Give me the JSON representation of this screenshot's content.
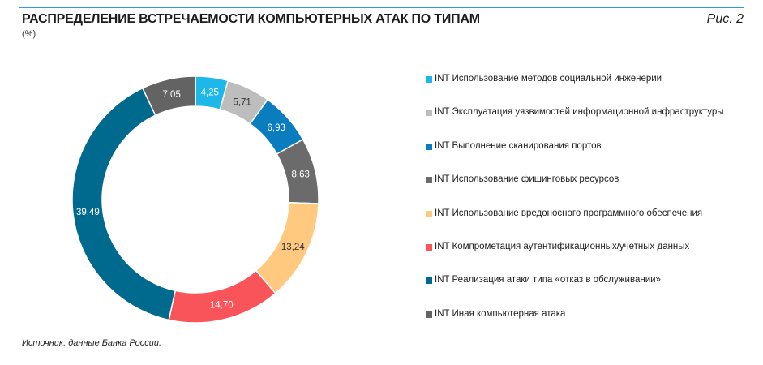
{
  "header": {
    "title": "РАСПРЕДЕЛЕНИЕ ВСТРЕЧАЕМОСТИ КОМПЬЮТЕРНЫХ АТАК ПО ТИПАМ",
    "subtitle": "(%)",
    "figure_label": "Рис. 2"
  },
  "footer": {
    "source": "Источник: данные Банка России."
  },
  "colors": {
    "rule": "#2a9fd6"
  },
  "chart_data": {
    "type": "pie",
    "variant": "donut",
    "title": "РАСПРЕДЕЛЕНИЕ ВСТРЕЧАЕМОСТИ КОМПЬЮТЕРНЫХ АТАК ПО ТИПАМ",
    "unit": "(%)",
    "start_angle": "12 o'clock",
    "direction": "clockwise",
    "legend_position": "right",
    "slices": [
      {
        "label": "INT Использование методов социальной инженерии",
        "value": 4.25,
        "value_label": "4,25",
        "color": "#1db7ea",
        "label_color": "#ffffff"
      },
      {
        "label": "INT Эксплуатация уязвимостей информационной инфраструктуры",
        "value": 5.71,
        "value_label": "5,71",
        "color": "#bdbdbd",
        "label_color": "#333333"
      },
      {
        "label": "INT Выполнение сканирования портов",
        "value": 6.93,
        "value_label": "6,93",
        "color": "#0a7dbf",
        "label_color": "#ffffff"
      },
      {
        "label": "INT Использование фишинговых ресурсов",
        "value": 8.63,
        "value_label": "8,63",
        "color": "#6b6b6b",
        "label_color": "#ffffff"
      },
      {
        "label": "INT Использование вредоносного программного обеспечения",
        "value": 13.24,
        "value_label": "13,24",
        "color": "#ffca80",
        "label_color": "#333333"
      },
      {
        "label": "INT Компрометация аутентификационных/учетных данных",
        "value": 14.7,
        "value_label": "14,70",
        "color": "#f9545a",
        "label_color": "#ffffff"
      },
      {
        "label": "INT Реализация атаки типа «отказ в обслуживании»",
        "value": 39.49,
        "value_label": "39,49",
        "color": "#006a8e",
        "label_color": "#ffffff"
      },
      {
        "label": "INT Иная компьютерная атака",
        "value": 7.05,
        "value_label": "7,05",
        "color": "#636363",
        "label_color": "#ffffff"
      }
    ]
  }
}
